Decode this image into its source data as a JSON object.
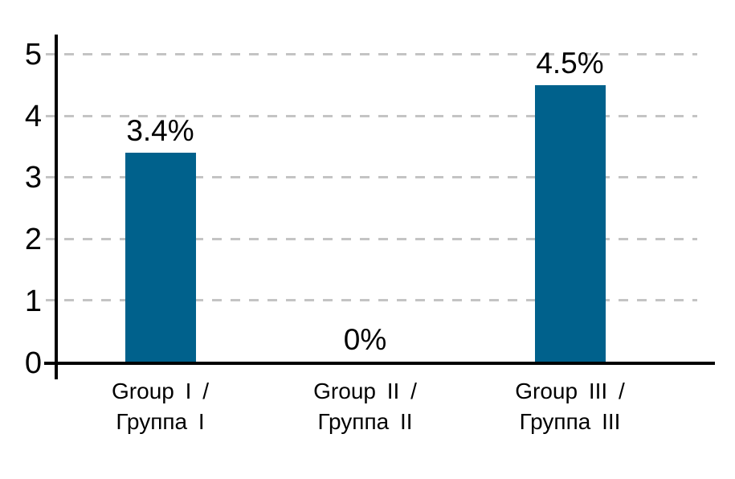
{
  "chart_data": {
    "type": "bar",
    "title": "",
    "xlabel": "",
    "ylabel": "",
    "categories": [
      "Group I / Группа I",
      "Group II / Группа II",
      "Group III / Группа III"
    ],
    "category_lines": [
      [
        "Group I /",
        "Группа I"
      ],
      [
        "Group II /",
        "Группа II"
      ],
      [
        "Group III /",
        "Группа III"
      ]
    ],
    "values": [
      3.4,
      0,
      4.5
    ],
    "data_labels": [
      "3.4%",
      "0%",
      "4.5%"
    ],
    "ylim": [
      0,
      5
    ],
    "y_ticks": [
      0,
      1,
      2,
      3,
      4,
      5
    ],
    "y_tick_labels_top_to_bottom": [
      "5",
      "4",
      "3",
      "2",
      "1",
      "0"
    ],
    "grid": "horizontal-dashed",
    "legend": "none",
    "colors": {
      "bar": "#00618C",
      "gridline": "#C4C4C4",
      "axis": "#000000",
      "text": "#000000",
      "background": "#FFFFFF"
    }
  }
}
